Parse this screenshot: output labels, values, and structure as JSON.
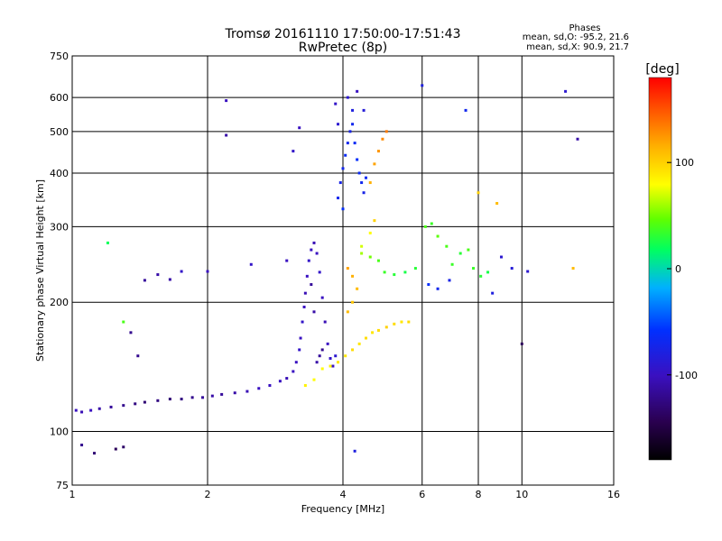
{
  "figure": {
    "title": "Tromsø 20161110 17:50:00-17:51:43",
    "subtitle": "RwPretec (8p)"
  },
  "phases_box": {
    "heading": "Phases",
    "line_o": "mean, sd,O: -95.2, 21.6",
    "line_x": "mean, sd,X: 90.9, 21.7"
  },
  "colorbar": {
    "unit_label": "[deg]",
    "tick_labels": [
      "100",
      "0",
      "-100"
    ],
    "tick_values": [
      100,
      0,
      -100
    ],
    "range": [
      -180,
      180
    ]
  },
  "chart_data": {
    "type": "scatter",
    "title": "Tromsø 20161110 17:50:00-17:51:43",
    "subtitle": "RwPretec (8p)",
    "xlabel": "Frequency [MHz]",
    "ylabel": "Stationary phase Virtual Height [km]",
    "x_scale": "log",
    "y_scale": "log",
    "xlim": [
      1,
      16
    ],
    "ylim": [
      75,
      750
    ],
    "x_ticks": [
      1,
      2,
      4,
      6,
      8,
      10,
      16
    ],
    "x_tick_labels": [
      "1",
      "2",
      "4",
      "6",
      "8",
      "10",
      "16"
    ],
    "y_ticks": [
      75,
      100,
      200,
      300,
      400,
      500,
      600,
      750
    ],
    "y_tick_labels": [
      "75",
      "100",
      "200",
      "300",
      "400",
      "500",
      "600",
      "750"
    ],
    "grid": true,
    "color_scale": "phase in degrees, rainbow from black (-180) through violet/blue/cyan/green/yellow/orange to red (+180)",
    "series": [
      {
        "points": [
          [
            1.02,
            112,
            -100
          ],
          [
            1.05,
            111,
            -105
          ],
          [
            1.1,
            112,
            -100
          ],
          [
            1.15,
            113,
            -110
          ],
          [
            1.22,
            114,
            -115
          ],
          [
            1.3,
            115,
            -120
          ],
          [
            1.38,
            116,
            -125
          ],
          [
            1.45,
            117,
            -130
          ],
          [
            1.55,
            118,
            -125
          ],
          [
            1.65,
            119,
            -130
          ],
          [
            1.75,
            119,
            -125
          ],
          [
            1.85,
            120,
            -120
          ],
          [
            1.95,
            120,
            -115
          ],
          [
            2.05,
            121,
            -110
          ],
          [
            2.15,
            122,
            -115
          ],
          [
            2.3,
            123,
            -110
          ],
          [
            2.45,
            124,
            -105
          ],
          [
            2.6,
            126,
            -100
          ],
          [
            2.75,
            128,
            -100
          ],
          [
            2.9,
            131,
            -100
          ],
          [
            3.0,
            133,
            -105
          ],
          [
            3.1,
            138,
            -100
          ],
          [
            3.15,
            145,
            -100
          ],
          [
            3.2,
            155,
            -95
          ],
          [
            3.22,
            165,
            -100
          ],
          [
            3.25,
            180,
            -95
          ],
          [
            3.28,
            195,
            -100
          ],
          [
            3.3,
            210,
            -105
          ],
          [
            3.33,
            230,
            -100
          ],
          [
            3.36,
            250,
            -95
          ],
          [
            3.4,
            265,
            -100
          ],
          [
            3.45,
            275,
            -105
          ],
          [
            3.5,
            260,
            -100
          ],
          [
            3.55,
            235,
            -95
          ],
          [
            3.6,
            205,
            -100
          ],
          [
            3.65,
            180,
            -105
          ],
          [
            3.7,
            160,
            -100
          ],
          [
            3.75,
            148,
            -95
          ],
          [
            3.8,
            142,
            -100
          ],
          [
            3.85,
            150,
            -90
          ],
          [
            3.5,
            145,
            -110
          ],
          [
            3.55,
            150,
            -115
          ],
          [
            3.6,
            155,
            -120
          ],
          [
            3.45,
            190,
            -110
          ],
          [
            3.4,
            220,
            -115
          ],
          [
            3.9,
            350,
            -70
          ],
          [
            3.95,
            380,
            -75
          ],
          [
            4.0,
            410,
            -70
          ],
          [
            4.05,
            440,
            -65
          ],
          [
            4.1,
            470,
            -70
          ],
          [
            4.15,
            500,
            -75
          ],
          [
            4.2,
            520,
            -70
          ],
          [
            4.25,
            470,
            -65
          ],
          [
            4.3,
            430,
            -60
          ],
          [
            4.35,
            400,
            -65
          ],
          [
            4.4,
            380,
            -70
          ],
          [
            4.45,
            360,
            -75
          ],
          [
            4.5,
            390,
            -65
          ],
          [
            4.2,
            560,
            -80
          ],
          [
            4.1,
            600,
            -90
          ],
          [
            3.85,
            580,
            -95
          ],
          [
            3.9,
            520,
            -90
          ],
          [
            4.3,
            620,
            -100
          ],
          [
            4.45,
            560,
            -85
          ],
          [
            4.0,
            330,
            -60
          ],
          [
            3.6,
            140,
            80
          ],
          [
            3.75,
            142,
            85
          ],
          [
            3.9,
            145,
            90
          ],
          [
            4.05,
            150,
            90
          ],
          [
            4.2,
            155,
            95
          ],
          [
            4.35,
            160,
            90
          ],
          [
            4.5,
            165,
            95
          ],
          [
            4.65,
            170,
            90
          ],
          [
            4.8,
            172,
            95
          ],
          [
            5.0,
            175,
            100
          ],
          [
            5.2,
            178,
            95
          ],
          [
            5.4,
            180,
            90
          ],
          [
            5.6,
            180,
            95
          ],
          [
            3.3,
            128,
            85
          ],
          [
            3.45,
            132,
            80
          ],
          [
            4.1,
            190,
            110
          ],
          [
            4.2,
            200,
            105
          ],
          [
            4.3,
            215,
            110
          ],
          [
            4.1,
            240,
            120
          ],
          [
            4.2,
            230,
            115
          ],
          [
            4.4,
            260,
            60
          ],
          [
            4.6,
            255,
            50
          ],
          [
            4.8,
            250,
            40
          ],
          [
            4.95,
            235,
            35
          ],
          [
            5.2,
            232,
            30
          ],
          [
            5.5,
            235,
            25
          ],
          [
            5.8,
            240,
            30
          ],
          [
            4.4,
            270,
            70
          ],
          [
            4.6,
            290,
            80
          ],
          [
            4.7,
            310,
            100
          ],
          [
            4.7,
            420,
            120
          ],
          [
            4.8,
            450,
            125
          ],
          [
            4.9,
            480,
            130
          ],
          [
            4.6,
            380,
            115
          ],
          [
            5.0,
            500,
            135
          ],
          [
            6.1,
            300,
            40
          ],
          [
            6.3,
            305,
            35
          ],
          [
            6.5,
            285,
            45
          ],
          [
            6.8,
            270,
            40
          ],
          [
            7.0,
            245,
            35
          ],
          [
            7.3,
            260,
            30
          ],
          [
            7.6,
            265,
            40
          ],
          [
            7.8,
            240,
            35
          ],
          [
            8.1,
            230,
            30
          ],
          [
            8.4,
            235,
            25
          ],
          [
            6.2,
            220,
            -60
          ],
          [
            6.5,
            215,
            -70
          ],
          [
            6.9,
            225,
            -75
          ],
          [
            8.0,
            360,
            100
          ],
          [
            8.6,
            210,
            -80
          ],
          [
            9.5,
            240,
            -85
          ],
          [
            10.3,
            236,
            -90
          ],
          [
            13.0,
            240,
            110
          ],
          [
            13.3,
            480,
            -110
          ],
          [
            10.0,
            160,
            -140
          ],
          [
            12.5,
            620,
            -90
          ],
          [
            6.0,
            640,
            -80
          ],
          [
            3.0,
            250,
            -100
          ],
          [
            2.5,
            245,
            -95
          ],
          [
            2.0,
            236,
            -100
          ],
          [
            1.75,
            236,
            -95
          ],
          [
            1.55,
            232,
            -110
          ],
          [
            1.45,
            225,
            -115
          ],
          [
            1.65,
            226,
            -110
          ],
          [
            1.2,
            275,
            20
          ],
          [
            1.3,
            180,
            40
          ],
          [
            1.35,
            170,
            -120
          ],
          [
            1.4,
            150,
            -120
          ],
          [
            1.05,
            93,
            -120
          ],
          [
            1.12,
            89,
            -130
          ],
          [
            1.25,
            91,
            -140
          ],
          [
            1.3,
            92,
            -135
          ],
          [
            2.2,
            590,
            -100
          ],
          [
            2.2,
            490,
            -110
          ],
          [
            3.2,
            510,
            -100
          ],
          [
            3.1,
            450,
            -95
          ],
          [
            7.5,
            560,
            -70
          ],
          [
            8.8,
            340,
            110
          ],
          [
            4.25,
            90,
            -80
          ],
          [
            9.0,
            255,
            -90
          ]
        ]
      }
    ]
  }
}
